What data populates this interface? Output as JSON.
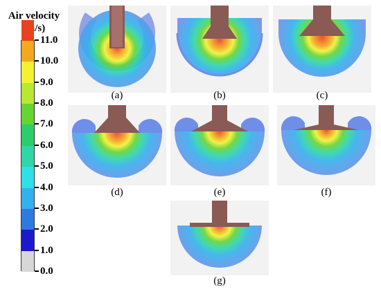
{
  "legend": {
    "title_line1": "Air velocity",
    "title_line2": "(m/s)",
    "ticks": [
      "11.0",
      "10.0",
      "9.0",
      "8.0",
      "7.0",
      "6.0",
      "5.0",
      "4.0",
      "3.0",
      "2.0",
      "1.0",
      "0.0"
    ],
    "colors": [
      "#d8d8d8",
      "#1a1acc",
      "#2f7ae0",
      "#33b0ee",
      "#2ee0e8",
      "#2ed6a8",
      "#2ecc6a",
      "#66d433",
      "#b8e833",
      "#f2f233",
      "#f5a81e",
      "#e8421f"
    ]
  },
  "panels": [
    {
      "label": "(a)"
    },
    {
      "label": "(b)"
    },
    {
      "label": "(c)"
    },
    {
      "label": "(d)"
    },
    {
      "label": "(e)"
    },
    {
      "label": "(f)"
    },
    {
      "label": "(g)"
    }
  ]
}
